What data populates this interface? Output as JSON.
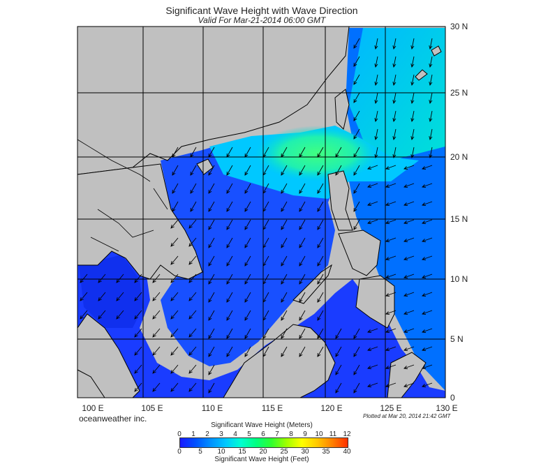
{
  "header": {
    "title": "Significant Wave Height with Wave Direction",
    "subtitle": "Valid For Mar-21-2014 06:00 GMT"
  },
  "map": {
    "lat_labels": [
      "30 N",
      "25 N",
      "20 N",
      "15 N",
      "10 N",
      "5 N",
      "0"
    ],
    "lon_labels": [
      "100 E",
      "105 E",
      "110 E",
      "115 E",
      "120 E",
      "125 E",
      "130 E"
    ],
    "extent": {
      "lon": [
        100,
        130
      ],
      "lat": [
        0,
        30
      ]
    },
    "colors": {
      "land": "#c0c0c0",
      "grid": "#000000",
      "arrow": "#000000"
    }
  },
  "footer": {
    "credit": "oceanweather inc.",
    "plotted": "Plotted at Mar 20, 2014 21:42 GMT"
  },
  "legend": {
    "title_meters": "Significant Wave Height (Meters)",
    "title_feet": "Significant Wave Height (Feet)",
    "meter_ticks": [
      "0",
      "1",
      "2",
      "3",
      "4",
      "5",
      "6",
      "7",
      "8",
      "9",
      "10",
      "11",
      "12"
    ],
    "feet_ticks": [
      "0",
      "5",
      "10",
      "15",
      "20",
      "25",
      "30",
      "35",
      "40"
    ],
    "colors": [
      "#1a1aff",
      "#0050ff",
      "#0090ff",
      "#00c8ff",
      "#00ffd0",
      "#00ff80",
      "#30ff30",
      "#a0ff00",
      "#ffff00",
      "#ffc800",
      "#ff8000",
      "#ff3000"
    ]
  }
}
